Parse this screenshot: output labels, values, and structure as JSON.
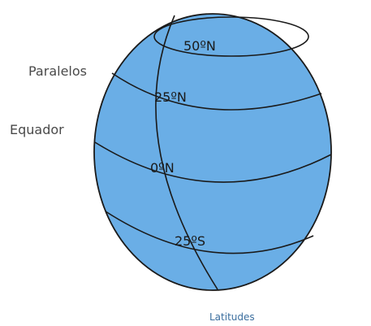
{
  "globe": {
    "latitudes": [
      "50ºN",
      "25ºN",
      "0ºN",
      "25ºS"
    ]
  },
  "labels": {
    "parallels": "Paralelos",
    "equator": "Equador"
  },
  "caption": "Latitudes"
}
